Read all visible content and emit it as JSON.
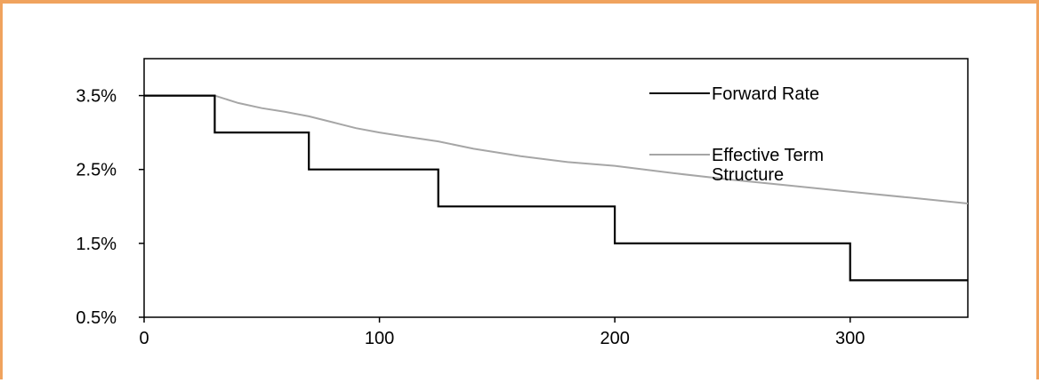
{
  "chart_data": {
    "type": "line",
    "title": "",
    "xlabel": "",
    "ylabel": "",
    "xlim": [
      0,
      350
    ],
    "ylim": [
      0.5,
      4.0
    ],
    "x_ticks": [
      0,
      100,
      200,
      300
    ],
    "x_tick_labels": [
      "0",
      "100",
      "200",
      "300"
    ],
    "y_ticks": [
      0.5,
      1.5,
      2.5,
      3.5
    ],
    "y_tick_labels": [
      "0.5%",
      "1.5%",
      "2.5%",
      "3.5%"
    ],
    "grid": false,
    "legend_position": "top-right",
    "series": [
      {
        "name": "Forward Rate",
        "color": "#000000",
        "step": true,
        "x": [
          0,
          30,
          30,
          70,
          70,
          125,
          125,
          200,
          200,
          300,
          300,
          350
        ],
        "y": [
          3.5,
          3.5,
          3.0,
          3.0,
          2.5,
          2.5,
          2.0,
          2.0,
          1.5,
          1.5,
          1.0,
          1.0
        ]
      },
      {
        "name_lines": [
          "Effective Term",
          "Structure"
        ],
        "color": "#a6a6a6",
        "step": false,
        "x": [
          0,
          30,
          40,
          50,
          60,
          70,
          80,
          90,
          100,
          110,
          125,
          140,
          160,
          180,
          200,
          225,
          250,
          275,
          300,
          325,
          350
        ],
        "y": [
          3.5,
          3.5,
          3.4,
          3.33,
          3.28,
          3.22,
          3.14,
          3.06,
          3.0,
          2.95,
          2.88,
          2.78,
          2.68,
          2.6,
          2.55,
          2.45,
          2.36,
          2.28,
          2.2,
          2.12,
          2.04
        ]
      }
    ]
  }
}
